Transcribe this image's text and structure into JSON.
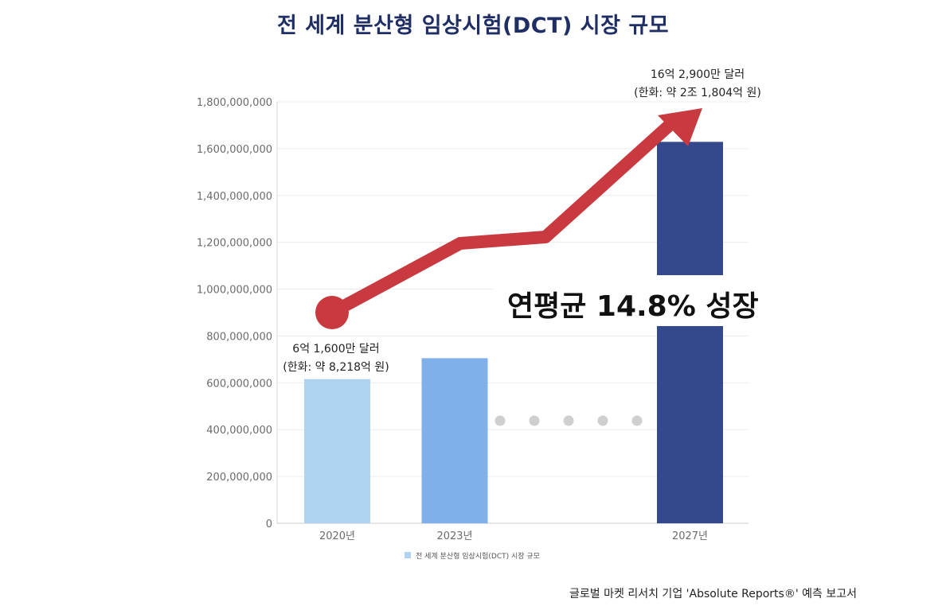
{
  "chart_data": {
    "type": "bar",
    "title": "전 세계 분산형 임상시험(DCT) 시장 규모",
    "categories": [
      "2020년",
      "2023년",
      "2027년"
    ],
    "series": [
      {
        "name": "전 세계 분산형 임상시험(DCT) 시장 규모",
        "values": [
          616000000,
          705000000,
          1629000000
        ]
      }
    ],
    "bar_colors": [
      "#b1d3f2",
      "#7fb0ea",
      "#34488c"
    ],
    "ylim": [
      0,
      1800000000
    ],
    "yticks": [
      0,
      200000000,
      400000000,
      600000000,
      800000000,
      1000000000,
      1200000000,
      1400000000,
      1600000000,
      1800000000
    ],
    "ytick_labels": [
      "0",
      "200,000,000",
      "400,000,000",
      "600,000,000",
      "800,000,000",
      "1,000,000,000",
      "1,200,000,000",
      "1,400,000,000",
      "1,600,000,000",
      "1,800,000,000"
    ],
    "grid": true,
    "legend_position": "bottom",
    "annotations": {
      "first_line1": "6억 1,600만 달러",
      "first_line2": "(한화: 약 8,218억 원)",
      "last_line1": "16억 2,900만 달러",
      "last_line2": "(한화: 약 2조 1,804억 원)",
      "growth": "연평균 14.8% 성장"
    },
    "arrow_color": "#c83a3f",
    "dot_color": "#cfcfcf"
  },
  "source": "글로벌 마켓 리서치 기업 'Absolute Reports®' 예측 보고서"
}
